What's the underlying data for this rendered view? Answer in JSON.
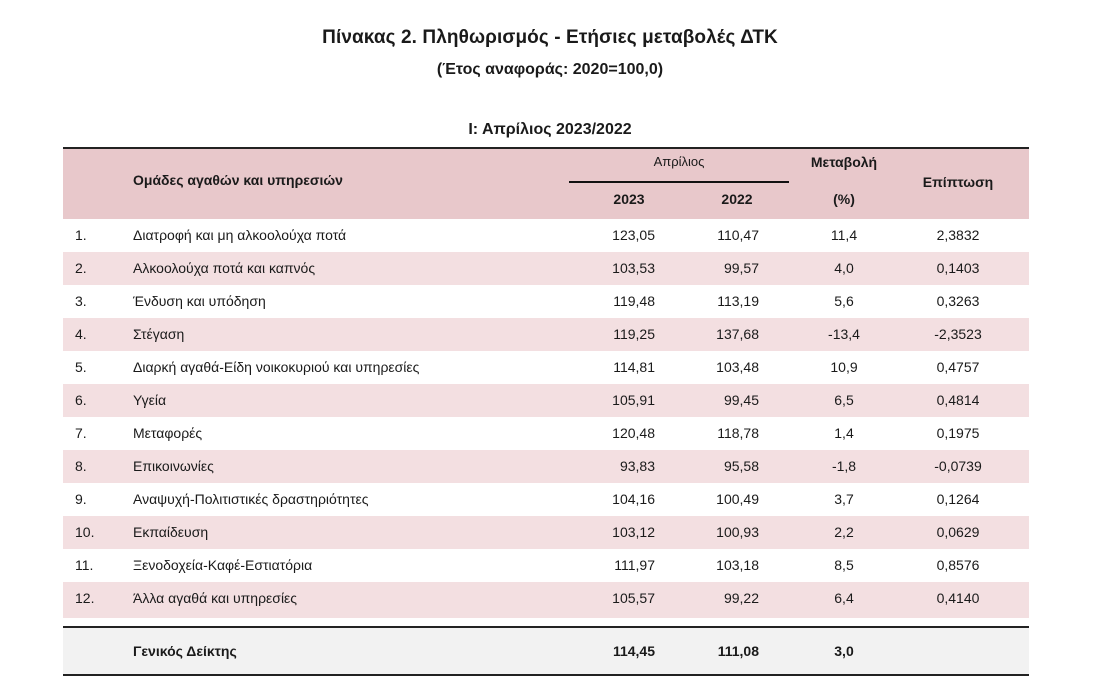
{
  "title": "Πίνακας 2. Πληθωρισμός - Ετήσιες μεταβολές ΔΤΚ",
  "subtitle": "(Έτος αναφοράς: 2020=100,0)",
  "section": "Ι: Απρίλιος 2023/2022",
  "header": {
    "groups": "Ομάδες αγαθών και υπηρεσιών",
    "april": "Απρίλιος",
    "y2023": "2023",
    "y2022": "2022",
    "change": "Μεταβολή",
    "pct": "(%)",
    "impact": "Επίπτωση"
  },
  "rows": [
    {
      "num": "1.",
      "name": "Διατροφή και μη αλκοολούχα ποτά",
      "y2023": "123,05",
      "y2022": "110,47",
      "change": "11,4",
      "impact": "2,3832"
    },
    {
      "num": "2.",
      "name": "Αλκοολούχα ποτά και καπνός",
      "y2023": "103,53",
      "y2022": "99,57",
      "change": "4,0",
      "impact": "0,1403"
    },
    {
      "num": "3.",
      "name": "Ένδυση και υπόδηση",
      "y2023": "119,48",
      "y2022": "113,19",
      "change": "5,6",
      "impact": "0,3263"
    },
    {
      "num": "4.",
      "name": "Στέγαση",
      "y2023": "119,25",
      "y2022": "137,68",
      "change": "-13,4",
      "impact": "-2,3523"
    },
    {
      "num": "5.",
      "name": "Διαρκή αγαθά-Είδη νοικοκυριού και υπηρεσίες",
      "y2023": "114,81",
      "y2022": "103,48",
      "change": "10,9",
      "impact": "0,4757"
    },
    {
      "num": "6.",
      "name": "Υγεία",
      "y2023": "105,91",
      "y2022": "99,45",
      "change": "6,5",
      "impact": "0,4814"
    },
    {
      "num": "7.",
      "name": "Μεταφορές",
      "y2023": "120,48",
      "y2022": "118,78",
      "change": "1,4",
      "impact": "0,1975"
    },
    {
      "num": "8.",
      "name": "Επικοινωνίες",
      "y2023": "93,83",
      "y2022": "95,58",
      "change": "-1,8",
      "impact": "-0,0739"
    },
    {
      "num": "9.",
      "name": "Αναψυχή-Πολιτιστικές δραστηριότητες",
      "y2023": "104,16",
      "y2022": "100,49",
      "change": "3,7",
      "impact": "0,1264"
    },
    {
      "num": "10.",
      "name": "Εκπαίδευση",
      "y2023": "103,12",
      "y2022": "100,93",
      "change": "2,2",
      "impact": "0,0629"
    },
    {
      "num": "11.",
      "name": "Ξενοδοχεία-Καφέ-Εστιατόρια",
      "y2023": "111,97",
      "y2022": "103,18",
      "change": "8,5",
      "impact": "0,8576"
    },
    {
      "num": "12.",
      "name": "Άλλα αγαθά και υπηρεσίες",
      "y2023": "105,57",
      "y2022": "99,22",
      "change": "6,4",
      "impact": "0,4140"
    }
  ],
  "total": {
    "name": "Γενικός Δείκτης",
    "y2023": "114,45",
    "y2022": "111,08",
    "change": "3,0",
    "impact": ""
  },
  "colors": {
    "header_bg": "#e8c8cb",
    "shade_bg": "#f3dfe1",
    "total_bg": "#f2f2f2"
  }
}
